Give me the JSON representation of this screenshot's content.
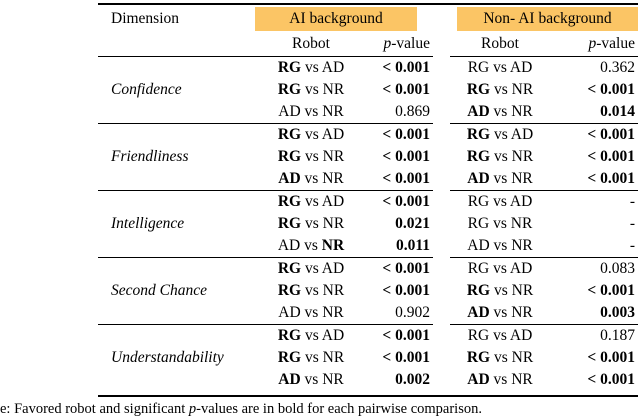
{
  "accent_color": "#FBC565",
  "table": {
    "column_headers": {
      "dimension": "Dimension",
      "ai_group": "AI background",
      "non_ai_group": "Non- AI background",
      "robot": "Robot",
      "p_italic": "p",
      "p_rest": "-value"
    },
    "vs_label": "vs",
    "groups": [
      {
        "dimension": "Confidence",
        "rows": [
          {
            "ai": {
              "a": "RG",
              "a_bold": true,
              "b": "AD",
              "b_bold": false,
              "p": "< 0.001",
              "p_bold": true
            },
            "non_ai": {
              "a": "RG",
              "a_bold": false,
              "b": "AD",
              "b_bold": false,
              "p": "0.362",
              "p_bold": false
            }
          },
          {
            "ai": {
              "a": "RG",
              "a_bold": true,
              "b": "NR",
              "b_bold": false,
              "p": "< 0.001",
              "p_bold": true
            },
            "non_ai": {
              "a": "RG",
              "a_bold": true,
              "b": "NR",
              "b_bold": false,
              "p": "< 0.001",
              "p_bold": true
            }
          },
          {
            "ai": {
              "a": "AD",
              "a_bold": false,
              "b": "NR",
              "b_bold": false,
              "p": "0.869",
              "p_bold": false
            },
            "non_ai": {
              "a": "AD",
              "a_bold": true,
              "b": "NR",
              "b_bold": false,
              "p": "0.014",
              "p_bold": true
            }
          }
        ]
      },
      {
        "dimension": "Friendliness",
        "rows": [
          {
            "ai": {
              "a": "RG",
              "a_bold": true,
              "b": "AD",
              "b_bold": false,
              "p": "< 0.001",
              "p_bold": true
            },
            "non_ai": {
              "a": "RG",
              "a_bold": true,
              "b": "AD",
              "b_bold": false,
              "p": "< 0.001",
              "p_bold": true
            }
          },
          {
            "ai": {
              "a": "RG",
              "a_bold": true,
              "b": "NR",
              "b_bold": false,
              "p": "< 0.001",
              "p_bold": true
            },
            "non_ai": {
              "a": "RG",
              "a_bold": true,
              "b": "NR",
              "b_bold": false,
              "p": "< 0.001",
              "p_bold": true
            }
          },
          {
            "ai": {
              "a": "AD",
              "a_bold": true,
              "b": "NR",
              "b_bold": false,
              "p": "< 0.001",
              "p_bold": true
            },
            "non_ai": {
              "a": "AD",
              "a_bold": true,
              "b": "NR",
              "b_bold": false,
              "p": "< 0.001",
              "p_bold": true
            }
          }
        ]
      },
      {
        "dimension": "Intelligence",
        "rows": [
          {
            "ai": {
              "a": "RG",
              "a_bold": true,
              "b": "AD",
              "b_bold": false,
              "p": "< 0.001",
              "p_bold": true
            },
            "non_ai": {
              "a": "RG",
              "a_bold": false,
              "b": "AD",
              "b_bold": false,
              "p": "-",
              "p_bold": false
            }
          },
          {
            "ai": {
              "a": "RG",
              "a_bold": true,
              "b": "NR",
              "b_bold": false,
              "p": "0.021",
              "p_bold": true
            },
            "non_ai": {
              "a": "RG",
              "a_bold": false,
              "b": "NR",
              "b_bold": false,
              "p": "-",
              "p_bold": false
            }
          },
          {
            "ai": {
              "a": "AD",
              "a_bold": false,
              "b": "NR",
              "b_bold": true,
              "p": "0.011",
              "p_bold": true
            },
            "non_ai": {
              "a": "AD",
              "a_bold": false,
              "b": "NR",
              "b_bold": false,
              "p": "-",
              "p_bold": false
            }
          }
        ]
      },
      {
        "dimension": "Second Chance",
        "rows": [
          {
            "ai": {
              "a": "RG",
              "a_bold": true,
              "b": "AD",
              "b_bold": false,
              "p": "< 0.001",
              "p_bold": true
            },
            "non_ai": {
              "a": "RG",
              "a_bold": false,
              "b": "AD",
              "b_bold": false,
              "p": "0.083",
              "p_bold": false
            }
          },
          {
            "ai": {
              "a": "RG",
              "a_bold": true,
              "b": "NR",
              "b_bold": false,
              "p": "< 0.001",
              "p_bold": true
            },
            "non_ai": {
              "a": "RG",
              "a_bold": true,
              "b": "NR",
              "b_bold": false,
              "p": "< 0.001",
              "p_bold": true
            }
          },
          {
            "ai": {
              "a": "AD",
              "a_bold": false,
              "b": "NR",
              "b_bold": false,
              "p": "0.902",
              "p_bold": false
            },
            "non_ai": {
              "a": "AD",
              "a_bold": true,
              "b": "NR",
              "b_bold": false,
              "p": "0.003",
              "p_bold": true
            }
          }
        ]
      },
      {
        "dimension": "Understandability",
        "rows": [
          {
            "ai": {
              "a": "RG",
              "a_bold": true,
              "b": "AD",
              "b_bold": false,
              "p": "< 0.001",
              "p_bold": true
            },
            "non_ai": {
              "a": "RG",
              "a_bold": false,
              "b": "AD",
              "b_bold": false,
              "p": "0.187",
              "p_bold": false
            }
          },
          {
            "ai": {
              "a": "RG",
              "a_bold": true,
              "b": "NR",
              "b_bold": false,
              "p": "< 0.001",
              "p_bold": true
            },
            "non_ai": {
              "a": "RG",
              "a_bold": true,
              "b": "NR",
              "b_bold": false,
              "p": "< 0.001",
              "p_bold": true
            }
          },
          {
            "ai": {
              "a": "AD",
              "a_bold": true,
              "b": "NR",
              "b_bold": false,
              "p": "0.002",
              "p_bold": true
            },
            "non_ai": {
              "a": "AD",
              "a_bold": true,
              "b": "NR",
              "b_bold": false,
              "p": "< 0.001",
              "p_bold": true
            }
          }
        ]
      }
    ]
  },
  "caption": {
    "prefix": "e: Favored robot and significant ",
    "p_italic": "p",
    "suffix": "-values are in bold for each pairwise comparison."
  }
}
